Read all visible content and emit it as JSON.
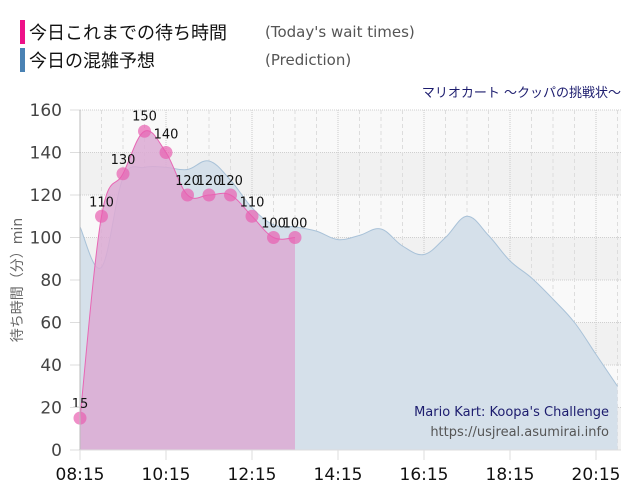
{
  "legend": {
    "items": [
      {
        "label_ja": "今日これまでの待ち時間",
        "label_en": "(Today's wait times)",
        "color": "#ee1188"
      },
      {
        "label_ja": "今日の混雑予想",
        "label_en": "(Prediction)",
        "color": "#4a82b4"
      }
    ]
  },
  "subtitle": "マリオカート ～クッパの挑戦状～",
  "credit": {
    "title": "Mario Kart: Koopa's Challenge",
    "url": "https://usjreal.asumirai.info"
  },
  "colors": {
    "actual_fill": "#dcaad4",
    "actual_line": "#e866b4",
    "actual_point": "#e860b0",
    "prediction_fill": "#d5e0ea",
    "prediction_line": "#a9c2d8",
    "band_dark": "#f1f1f1",
    "band_light": "#f9f9f9"
  },
  "chart_data": {
    "type": "area",
    "title": "マリオカート ～クッパの挑戦状～",
    "xlabel": "",
    "ylabel": "待ち時間（分）min",
    "ylim": [
      0,
      160
    ],
    "yticks": [
      0,
      20,
      40,
      60,
      80,
      100,
      120,
      140,
      160
    ],
    "xticks": [
      "08:15",
      "10:15",
      "12:15",
      "14:15",
      "16:15",
      "18:15",
      "20:15"
    ],
    "grid": true,
    "legend_position": "top-left",
    "series": [
      {
        "name": "今日これまでの待ち時間 (Today's wait times)",
        "x": [
          "08:15",
          "08:45",
          "09:15",
          "09:45",
          "10:15",
          "10:45",
          "11:15",
          "11:45",
          "12:15",
          "12:45",
          "13:15"
        ],
        "values": [
          15,
          110,
          130,
          150,
          140,
          120,
          120,
          120,
          110,
          100,
          100
        ]
      },
      {
        "name": "今日の混雑予想 (Prediction)",
        "x": [
          "08:15",
          "08:45",
          "09:15",
          "09:45",
          "10:15",
          "10:45",
          "11:15",
          "11:45",
          "12:15",
          "12:45",
          "13:15",
          "13:45",
          "14:15",
          "14:45",
          "15:15",
          "15:45",
          "16:15",
          "16:45",
          "17:15",
          "17:45",
          "18:15",
          "18:45",
          "19:15",
          "19:45",
          "20:15",
          "20:45"
        ],
        "values": [
          105,
          86,
          128,
          133,
          133,
          132,
          136,
          127,
          114,
          106,
          105,
          103,
          99,
          101,
          104,
          96,
          92,
          100,
          110,
          101,
          89,
          81,
          71,
          60,
          45,
          30
        ]
      }
    ]
  }
}
